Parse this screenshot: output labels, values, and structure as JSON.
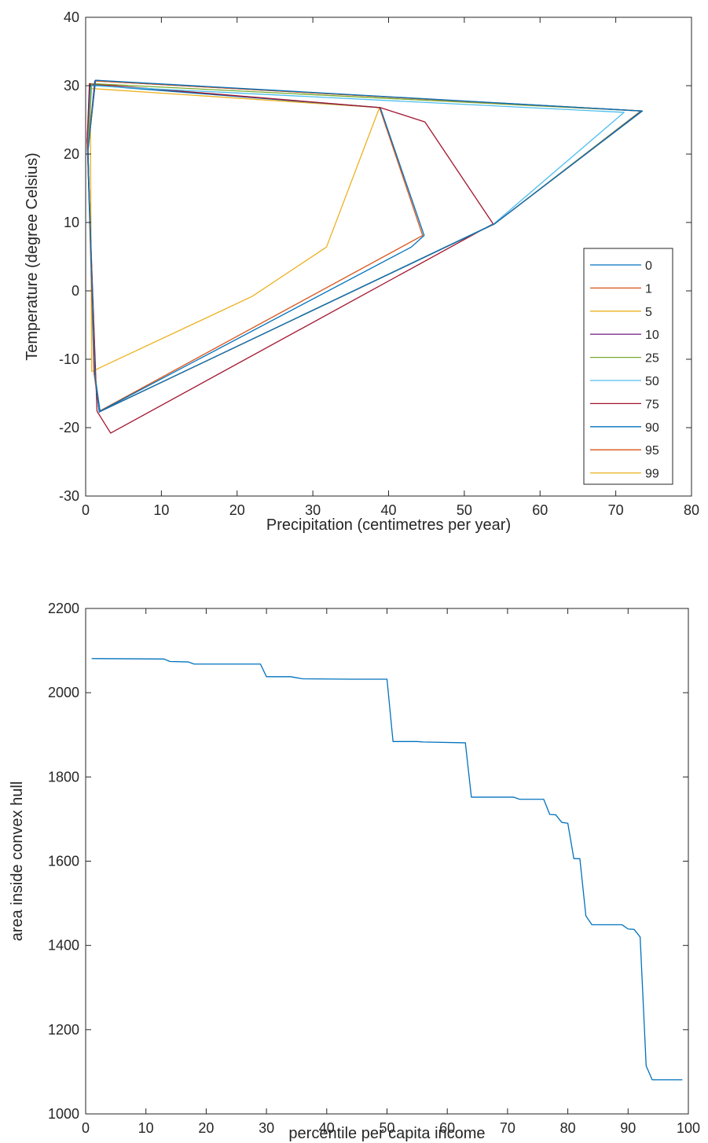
{
  "chart_data": [
    {
      "type": "line",
      "title": "",
      "xlabel": "Precipitation (centimetres per year)",
      "ylabel": "Temperature (degree Celsius)",
      "xlim": [
        0,
        80
      ],
      "ylim": [
        -30,
        40
      ],
      "xticks": [
        0,
        10,
        20,
        30,
        40,
        50,
        60,
        70,
        80
      ],
      "yticks": [
        -30,
        -20,
        -10,
        0,
        10,
        20,
        30,
        40
      ],
      "grid": false,
      "legend": "right",
      "series": [
        {
          "name": "99",
          "color": "#EDB120",
          "points": [
            [
              0.8,
              -11.8
            ],
            [
              22,
              -0.8
            ],
            [
              31.8,
              6.4
            ],
            [
              38.8,
              26.8
            ],
            [
              0.6,
              29.6
            ],
            [
              0.8,
              -11.8
            ]
          ]
        },
        {
          "name": "95",
          "color": "#D95319",
          "points": [
            [
              1.1,
              -12
            ],
            [
              1.8,
              -17.6
            ],
            [
              44.5,
              8.1
            ],
            [
              38.8,
              26.8
            ],
            [
              0.5,
              30.2
            ],
            [
              0.3,
              19
            ],
            [
              1.1,
              -12
            ]
          ]
        },
        {
          "name": "90",
          "color": "#0072BD",
          "points": [
            [
              1.2,
              -12
            ],
            [
              1.9,
              -17.6
            ],
            [
              43,
              6.4
            ],
            [
              44.7,
              8.1
            ],
            [
              38.9,
              26.8
            ],
            [
              0.6,
              30.1
            ],
            [
              0.2,
              22
            ],
            [
              1.2,
              -12
            ]
          ]
        },
        {
          "name": "75",
          "color": "#A2142F",
          "points": [
            [
              1.5,
              -17.6
            ],
            [
              3.3,
              -20.8
            ],
            [
              53.8,
              9.8
            ],
            [
              44.8,
              24.7
            ],
            [
              38.9,
              26.8
            ],
            [
              0.5,
              30.3
            ],
            [
              0.2,
              22
            ],
            [
              1.5,
              -17.6
            ]
          ]
        },
        {
          "name": "50",
          "color": "#4DBEEE",
          "points": [
            [
              1.2,
              -12
            ],
            [
              1.8,
              -17.7
            ],
            [
              53.9,
              9.8
            ],
            [
              71.1,
              26.1
            ],
            [
              0.7,
              30
            ],
            [
              0.3,
              20.5
            ],
            [
              1.2,
              -12
            ]
          ]
        },
        {
          "name": "25",
          "color": "#77AC30",
          "points": [
            [
              1.2,
              -12
            ],
            [
              1.8,
              -17.7
            ],
            [
              54,
              9.8
            ],
            [
              73.3,
              26.3
            ],
            [
              0.8,
              30.3
            ],
            [
              0.3,
              20.5
            ],
            [
              1.2,
              -12
            ]
          ]
        },
        {
          "name": "10",
          "color": "#7E2F8E",
          "points": [
            [
              1.2,
              -12
            ],
            [
              1.8,
              -17.7
            ],
            [
              54,
              9.8
            ],
            [
              73.4,
              26.3
            ],
            [
              1.2,
              30.7
            ],
            [
              0.3,
              20.5
            ],
            [
              1.2,
              -12
            ]
          ]
        },
        {
          "name": "5",
          "color": "#EDB120",
          "points": [
            [
              1.2,
              -12
            ],
            [
              1.8,
              -17.7
            ],
            [
              54,
              9.8
            ],
            [
              73.5,
              26.3
            ],
            [
              1.3,
              30.7
            ],
            [
              0.3,
              20.5
            ],
            [
              1.2,
              -12
            ]
          ]
        },
        {
          "name": "1",
          "color": "#D95319",
          "points": [
            [
              1.2,
              -12
            ],
            [
              1.8,
              -17.7
            ],
            [
              54,
              9.8
            ],
            [
              73.5,
              26.3
            ],
            [
              1.3,
              30.7
            ],
            [
              0.3,
              20.5
            ],
            [
              1.2,
              -12
            ]
          ]
        },
        {
          "name": "0",
          "color": "#0072BD",
          "points": [
            [
              1.2,
              -12
            ],
            [
              1.8,
              -17.7
            ],
            [
              54,
              9.8
            ],
            [
              73.5,
              26.3
            ],
            [
              1.3,
              30.8
            ],
            [
              0.3,
              20.5
            ],
            [
              1.2,
              -12
            ]
          ]
        }
      ],
      "legend_order": [
        "0",
        "1",
        "5",
        "10",
        "25",
        "50",
        "75",
        "90",
        "95",
        "99"
      ]
    },
    {
      "type": "line",
      "title": "",
      "xlabel": "percentile per capita income",
      "ylabel": "area inside convex hull",
      "xlim": [
        0,
        100
      ],
      "ylim": [
        1000,
        2200
      ],
      "xticks": [
        0,
        10,
        20,
        30,
        40,
        50,
        60,
        70,
        80,
        90,
        100
      ],
      "yticks": [
        1000,
        1200,
        1400,
        1600,
        1800,
        2000,
        2200
      ],
      "grid": false,
      "series": [
        {
          "color": "#0072BD",
          "x": [
            1,
            13,
            14,
            17,
            18,
            29,
            30,
            34,
            36,
            44,
            45,
            50,
            51,
            55,
            56,
            63,
            64,
            71,
            72,
            76,
            77,
            78,
            79,
            80,
            81,
            82,
            83,
            84,
            85,
            89,
            90,
            91,
            92,
            93,
            94,
            95,
            99
          ],
          "y": [
            2081,
            2080,
            2074,
            2073,
            2068,
            2068,
            2038,
            2038,
            2033,
            2032,
            2032,
            2032,
            1884,
            1884,
            1883,
            1881,
            1752,
            1752,
            1747,
            1747,
            1711,
            1710,
            1692,
            1690,
            1606,
            1606,
            1470,
            1449,
            1449,
            1449,
            1439,
            1438,
            1420,
            1114,
            1081,
            1081,
            1081
          ]
        }
      ]
    }
  ]
}
